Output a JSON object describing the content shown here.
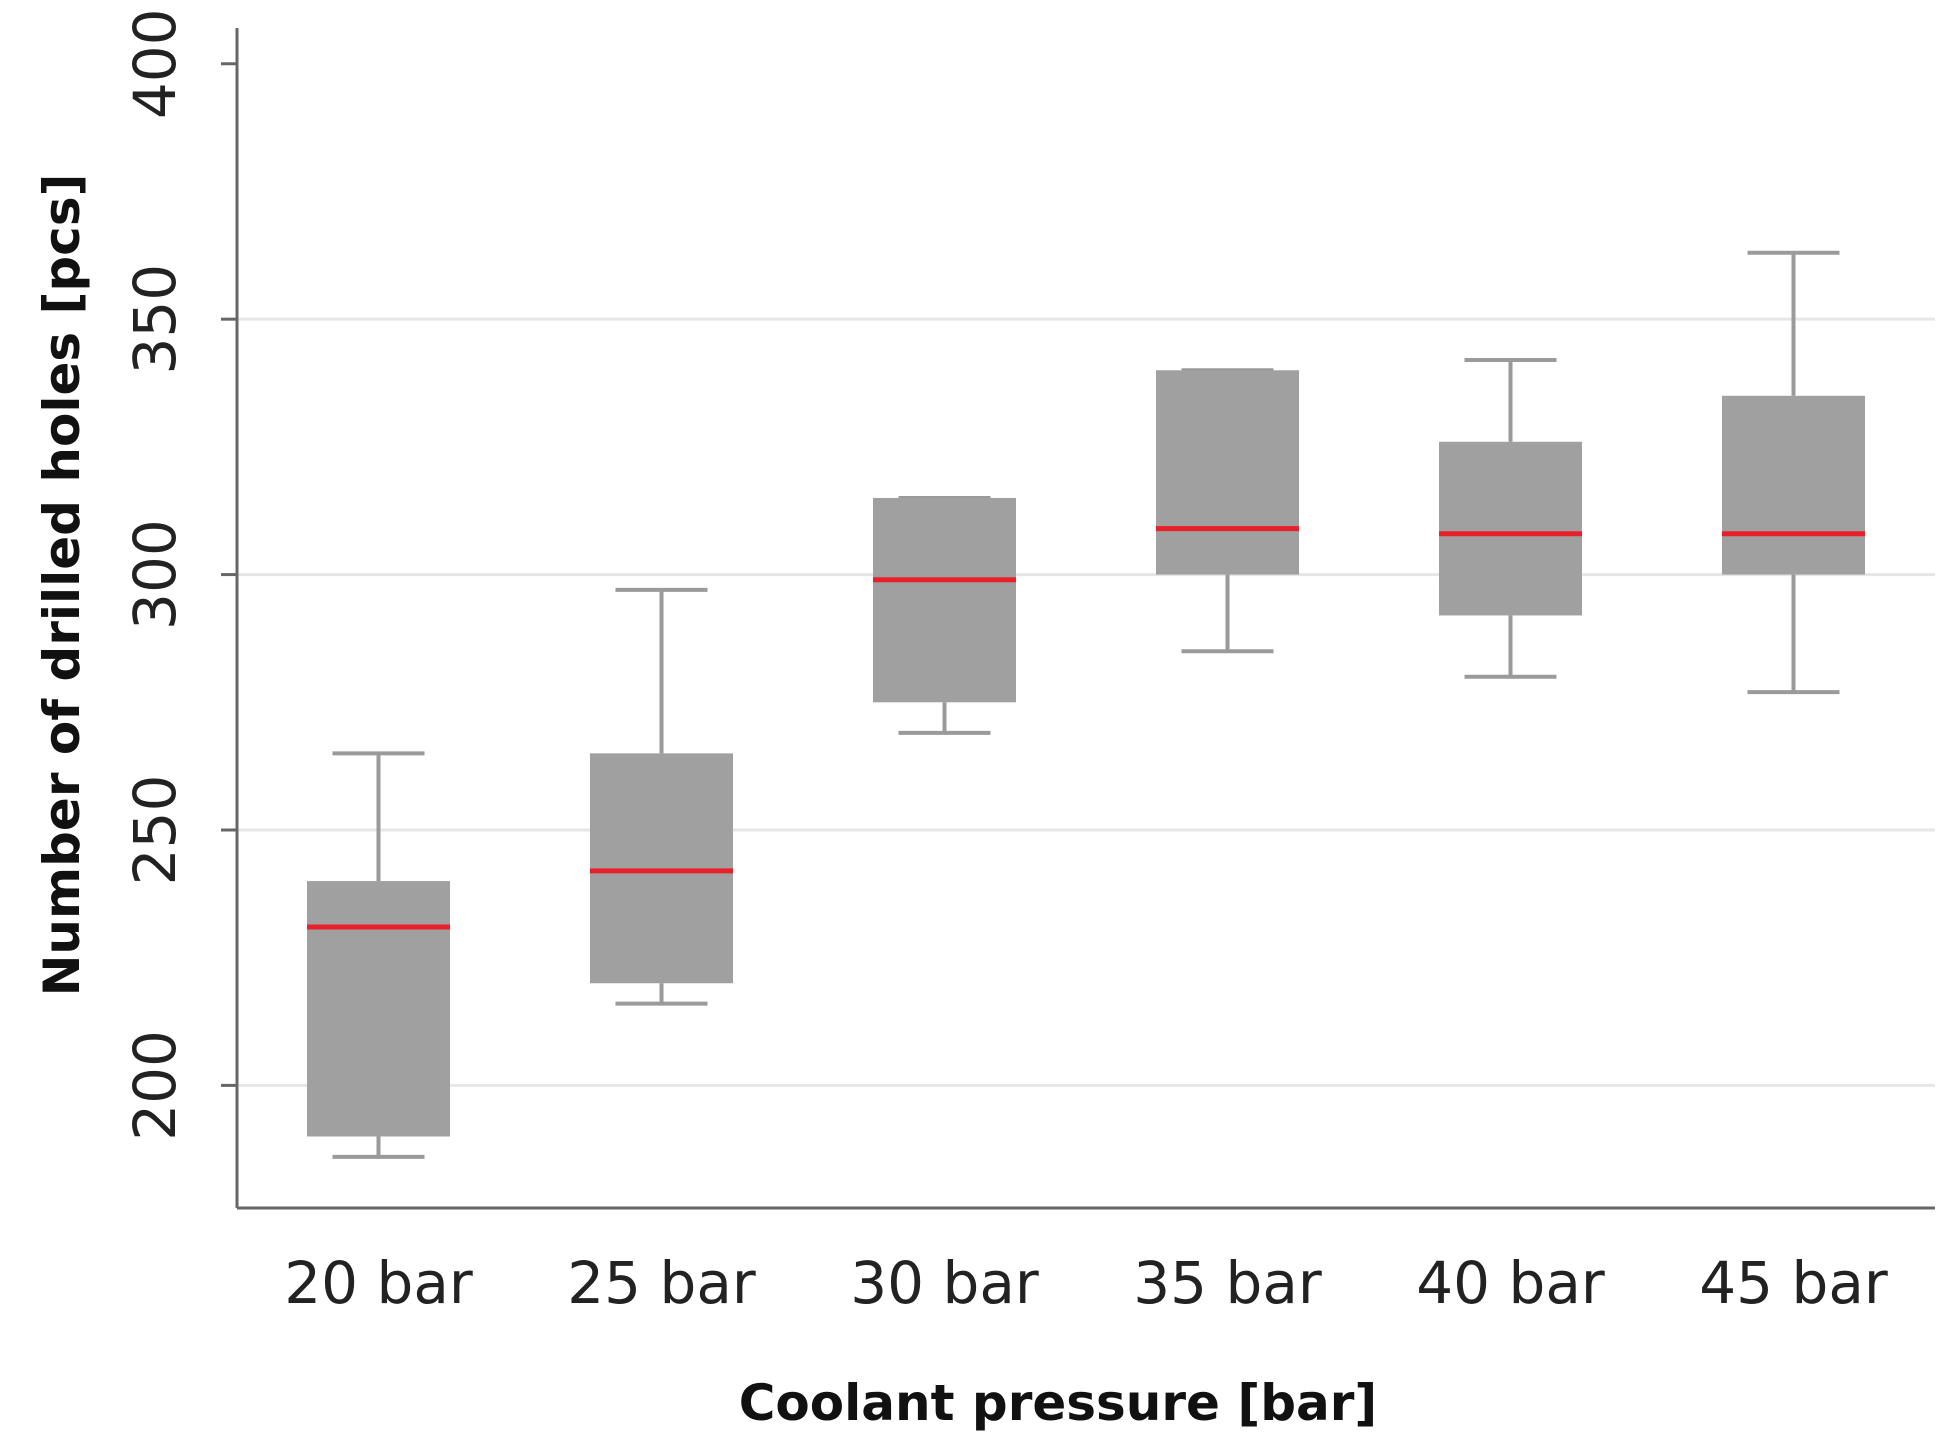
{
  "chart_data": {
    "type": "boxplot",
    "title": "",
    "xlabel": "Coolant pressure [bar]",
    "ylabel": "Number of drilled holes [pcs]",
    "ylim": [
      176,
      407
    ],
    "yticks": [
      200,
      250,
      300,
      350,
      400
    ],
    "grid": true,
    "categories": [
      "20 bar",
      "25 bar",
      "30 bar",
      "35 bar",
      "40 bar",
      "45 bar"
    ],
    "series": [
      {
        "name": "Number of drilled holes",
        "boxes": [
          {
            "category": "20 bar",
            "whisker_low": 186,
            "q1": 190,
            "median": 231,
            "q3": 240,
            "whisker_high": 265
          },
          {
            "category": "25 bar",
            "whisker_low": 216,
            "q1": 220,
            "median": 242,
            "q3": 265,
            "whisker_high": 297
          },
          {
            "category": "30 bar",
            "whisker_low": 269,
            "q1": 275,
            "median": 299,
            "q3": 315,
            "whisker_high": 315
          },
          {
            "category": "35 bar",
            "whisker_low": 285,
            "q1": 300,
            "median": 309,
            "q3": 340,
            "whisker_high": 340
          },
          {
            "category": "40 bar",
            "whisker_low": 280,
            "q1": 292,
            "median": 308,
            "q3": 326,
            "whisker_high": 342
          },
          {
            "category": "45 bar",
            "whisker_low": 277,
            "q1": 300,
            "median": 308,
            "q3": 335,
            "whisker_high": 363
          }
        ]
      }
    ],
    "colors": {
      "box": "#a0a0a0",
      "median": "#e8202a",
      "whisker": "#9a9a9a",
      "axis": "#666666",
      "grid": "#e6e6e6"
    }
  }
}
